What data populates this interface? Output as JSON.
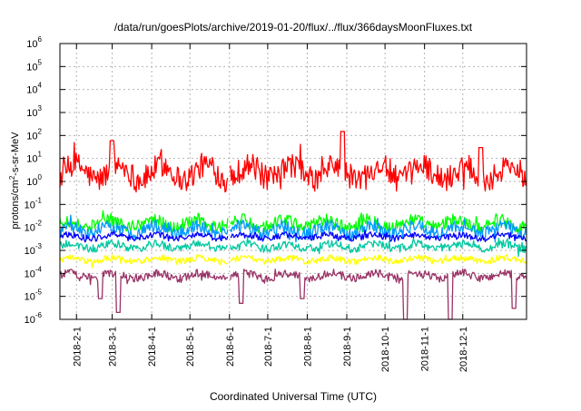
{
  "chart_data": {
    "type": "line",
    "title": "/data/run/goesPlots/archive/2019-01-20/flux/../flux/366daysMoonFluxes.txt",
    "xlabel": "Coordinated Universal Time (UTC)",
    "ylabel": {
      "base": "protons/cm",
      "exp": "2",
      "rest": "-s-sr-MeV"
    },
    "y_scale": "log",
    "ylim": [
      1e-06,
      1000000.0
    ],
    "y_ticks": [
      {
        "value": 1e-06,
        "base": "10",
        "exp": "-6"
      },
      {
        "value": 1e-05,
        "base": "10",
        "exp": "-5"
      },
      {
        "value": 0.0001,
        "base": "10",
        "exp": "-4"
      },
      {
        "value": 0.001,
        "base": "10",
        "exp": "-3"
      },
      {
        "value": 0.01,
        "base": "10",
        "exp": "-2"
      },
      {
        "value": 0.1,
        "base": "10",
        "exp": "-1"
      },
      {
        "value": 1,
        "base": "10",
        "exp": "0"
      },
      {
        "value": 10,
        "base": "10",
        "exp": "1"
      },
      {
        "value": 100,
        "base": "10",
        "exp": "2"
      },
      {
        "value": 1000,
        "base": "10",
        "exp": "3"
      },
      {
        "value": 10000,
        "base": "10",
        "exp": "4"
      },
      {
        "value": 100000,
        "base": "10",
        "exp": "5"
      },
      {
        "value": 1000000,
        "base": "10",
        "exp": "6"
      }
    ],
    "xlim": [
      "2018-01-19",
      "2019-01-20"
    ],
    "x_ticks": [
      "2018-2-1",
      "2018-3-1",
      "2018-4-1",
      "2018-5-1",
      "2018-6-1",
      "2018-7-1",
      "2018-8-1",
      "2018-9-1",
      "2018-10-1",
      "2018-11-1",
      "2018-12-1"
    ],
    "x_tick_dates": [
      "2018-02-01",
      "2018-03-01",
      "2018-04-01",
      "2018-05-01",
      "2018-06-01",
      "2018-07-01",
      "2018-08-01",
      "2018-09-01",
      "2018-10-01",
      "2018-11-01",
      "2018-12-01"
    ],
    "grid": true,
    "legend": "none",
    "series": [
      {
        "color": "#ff0000",
        "level": 2.5,
        "spread": 0.55,
        "bumps": [
          {
            "date": "2018-03-01",
            "value": 60
          },
          {
            "date": "2018-08-29",
            "value": 150
          },
          {
            "date": "2018-12-15",
            "value": 30
          }
        ]
      },
      {
        "color": "#00ff00",
        "level": 0.015,
        "spread": 0.28,
        "bumps": []
      },
      {
        "color": "#0099ff",
        "level": 0.008,
        "spread": 0.28,
        "bumps": []
      },
      {
        "color": "#0000ff",
        "level": 0.004,
        "spread": 0.14,
        "bumps": []
      },
      {
        "color": "#00c8a0",
        "level": 0.0015,
        "spread": 0.18,
        "bumps": []
      },
      {
        "color": "#ffff00",
        "level": 0.0004,
        "spread": 0.14,
        "bumps": []
      },
      {
        "color": "#993366",
        "level": 8e-05,
        "spread": 0.18,
        "bumps": [
          {
            "date": "2018-02-20",
            "value": 8e-06
          },
          {
            "date": "2018-03-06",
            "value": 2e-06
          },
          {
            "date": "2018-06-10",
            "value": 5e-06
          },
          {
            "date": "2018-07-28",
            "value": 8e-06
          },
          {
            "date": "2018-10-17",
            "value": 1e-06
          },
          {
            "date": "2018-11-21",
            "value": 1e-06
          },
          {
            "date": "2019-01-10",
            "value": 3e-06
          }
        ]
      }
    ]
  }
}
